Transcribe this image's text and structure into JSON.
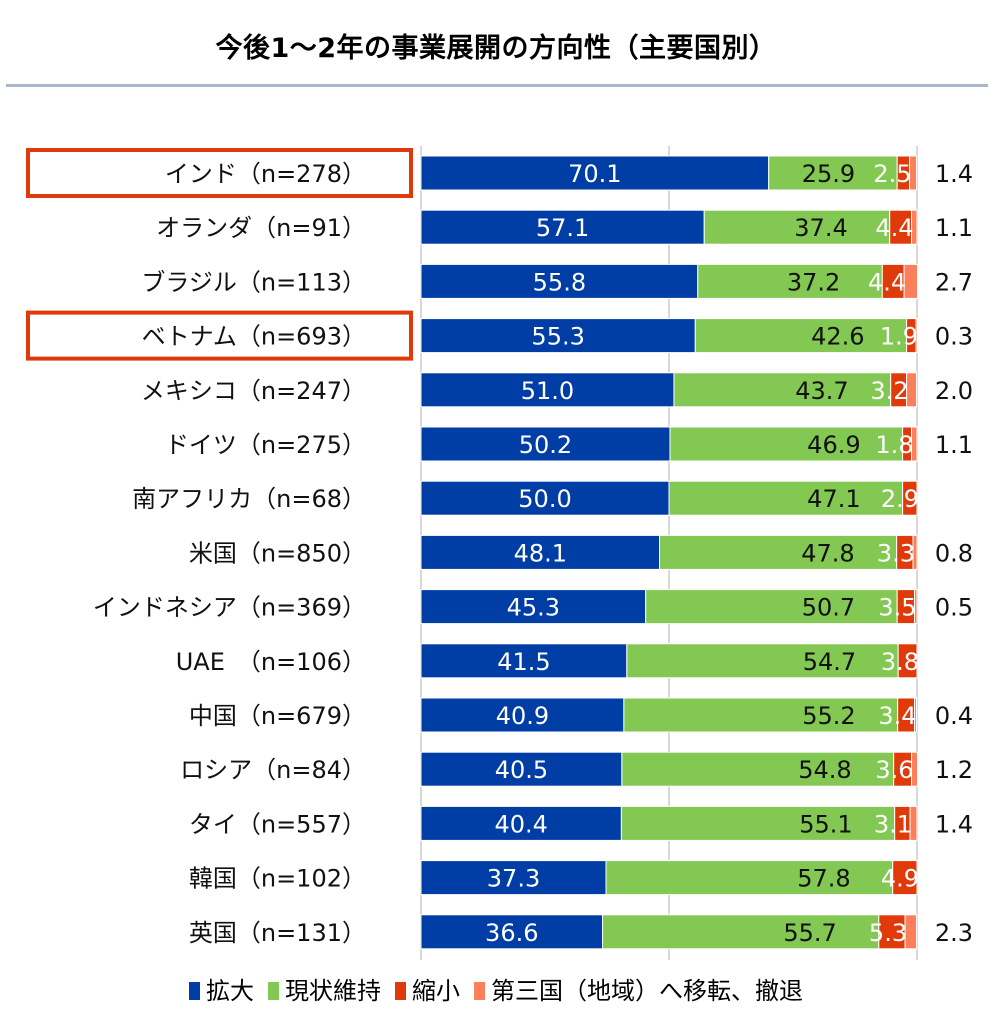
{
  "chart_data": {
    "type": "bar",
    "orientation": "horizontal",
    "stacked": true,
    "title": "今後1～2年の事業展開の方向性（主要国別）",
    "xlabel": "",
    "ylabel": "",
    "xlim": [
      0,
      100
    ],
    "grid": true,
    "gridlines_at": [
      0,
      50,
      100
    ],
    "legend_position": "bottom",
    "highlighted_categories": [
      "インド（n=278）",
      "ベトナム（n=693）"
    ],
    "categories": [
      "インド（n=278）",
      "オランダ（n=91）",
      "ブラジル（n=113）",
      "ベトナム（n=693）",
      "メキシコ（n=247）",
      "ドイツ（n=275）",
      "南アフリカ（n=68）",
      "米国（n=850）",
      "インドネシア（n=369）",
      "UAE　（n=106）",
      "中国（n=679）",
      "ロシア（n=84）",
      "タイ（n=557）",
      "韓国（n=102）",
      "英国（n=131）"
    ],
    "series": [
      {
        "name": "拡大",
        "color": "#003da5",
        "values": [
          70.1,
          57.1,
          55.8,
          55.3,
          51.0,
          50.2,
          50.0,
          48.1,
          45.3,
          41.5,
          40.9,
          40.5,
          40.4,
          37.3,
          36.6
        ],
        "labels": [
          "70.1",
          "57.1",
          "55.8",
          "55.3",
          "51.0",
          "50.2",
          "50.0",
          "48.1",
          "45.3",
          "41.5",
          "40.9",
          "40.5",
          "40.4",
          "37.3",
          "36.6"
        ]
      },
      {
        "name": "現状維持",
        "color": "#82c852",
        "values": [
          25.9,
          37.4,
          37.2,
          42.6,
          43.7,
          46.9,
          47.1,
          47.8,
          50.7,
          54.7,
          55.2,
          54.8,
          55.1,
          57.8,
          55.7
        ],
        "labels": [
          "25.9",
          "37.4",
          "37.2",
          "42.6",
          "43.7",
          "46.9",
          "47.1",
          "47.8",
          "50.7",
          "54.7",
          "55.2",
          "54.8",
          "55.1",
          "57.8",
          "55.7"
        ]
      },
      {
        "name": "縮小",
        "color": "#e03a0a",
        "values": [
          2.5,
          4.4,
          4.4,
          1.9,
          3.2,
          1.8,
          2.9,
          3.3,
          3.5,
          3.8,
          3.4,
          3.6,
          3.1,
          4.9,
          5.3
        ],
        "labels": [
          "2.5",
          "4.4",
          "4.4",
          "1.9",
          "3.2",
          "1.8",
          "2.9",
          "3.3",
          "3.5",
          "3.8",
          "3.4",
          "3.6",
          "3.1",
          "4.9",
          "5.3"
        ]
      },
      {
        "name": "第三国（地域）へ移転、撤退",
        "color": "#fa7f5a",
        "values": [
          1.4,
          1.1,
          2.7,
          0.3,
          2.0,
          1.1,
          0,
          0.8,
          0.5,
          0,
          0.4,
          1.2,
          1.4,
          0,
          2.3
        ],
        "labels": [
          "1.4",
          "1.1",
          "2.7",
          "0.3",
          "2.0",
          "1.1",
          "",
          "0.8",
          "0.5",
          "",
          "0.4",
          "1.2",
          "1.4",
          "",
          "2.3"
        ]
      }
    ]
  },
  "legend": {
    "items": [
      {
        "label": "拡大",
        "color": "#003da5"
      },
      {
        "label": "現状維持",
        "color": "#82c852"
      },
      {
        "label": "縮小",
        "color": "#e03a0a"
      },
      {
        "label": "第三国（地域）へ移転、撤退",
        "color": "#fa7f5a"
      }
    ]
  },
  "highlight_color": "#e03a0a"
}
